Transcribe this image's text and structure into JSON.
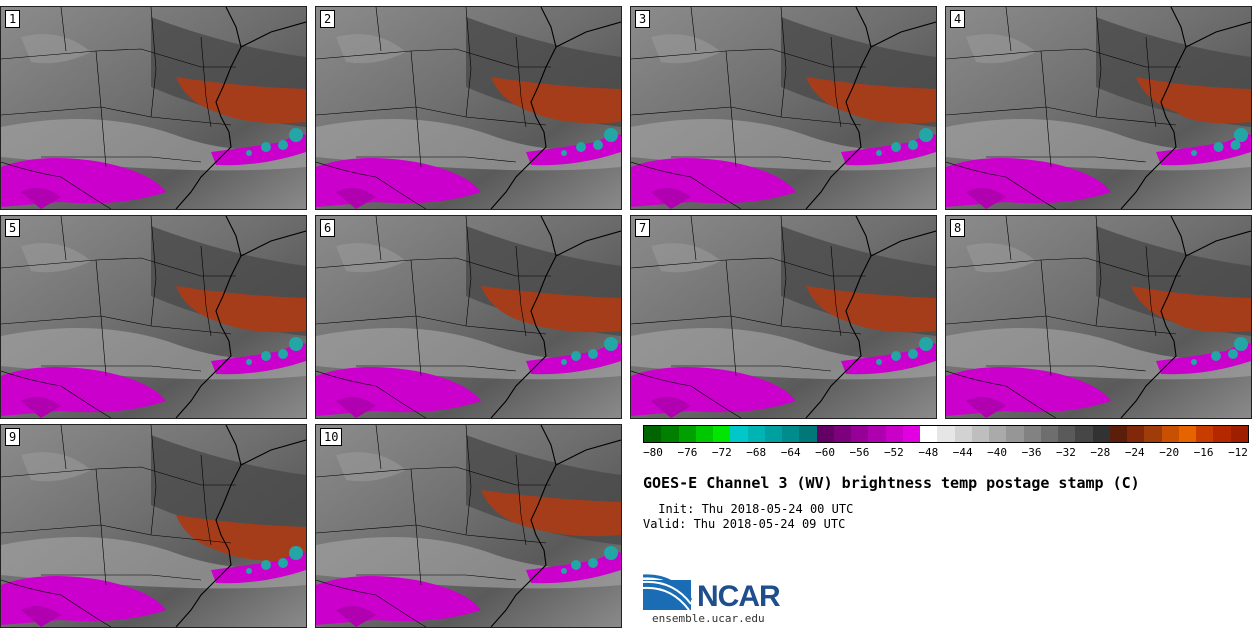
{
  "title": "GOES-E Channel 3 (WV) brightness temp postage stamp (C)",
  "init": " Init: Thu 2018-05-24 00 UTC",
  "valid": "Valid: Thu 2018-05-24 09 UTC",
  "site": "ensemble.ucar.edu",
  "logo_text": "NCAR",
  "panels": [
    {
      "label": "1"
    },
    {
      "label": "2"
    },
    {
      "label": "3"
    },
    {
      "label": "4"
    },
    {
      "label": "5"
    },
    {
      "label": "6"
    },
    {
      "label": "7"
    },
    {
      "label": "8"
    },
    {
      "label": "9"
    },
    {
      "label": "10"
    }
  ],
  "colorbar": {
    "ticks": [
      "−80",
      "−76",
      "−72",
      "−68",
      "−64",
      "−60",
      "−56",
      "−52",
      "−48",
      "−44",
      "−40",
      "−36",
      "−32",
      "−28",
      "−24",
      "−20",
      "−16",
      "−12"
    ],
    "colors": [
      "#006400",
      "#007f00",
      "#00a000",
      "#00c800",
      "#00e600",
      "#00c8c8",
      "#00b4b4",
      "#00a0a0",
      "#008c8c",
      "#007878",
      "#640064",
      "#7d007d",
      "#960096",
      "#af00af",
      "#c800c8",
      "#e100e1",
      "#ffffff",
      "#e6e6e6",
      "#d2d2d2",
      "#bebebe",
      "#aaaaaa",
      "#969696",
      "#828282",
      "#6e6e6e",
      "#5a5a5a",
      "#464646",
      "#323232",
      "#5a1e0a",
      "#82280a",
      "#a03c0a",
      "#c85000",
      "#e66400",
      "#c83c00",
      "#b42800",
      "#a01e00"
    ]
  },
  "colors": {
    "moist": "#cc00cc",
    "cold": "#22a6a6",
    "dry": "#a63d1a"
  }
}
